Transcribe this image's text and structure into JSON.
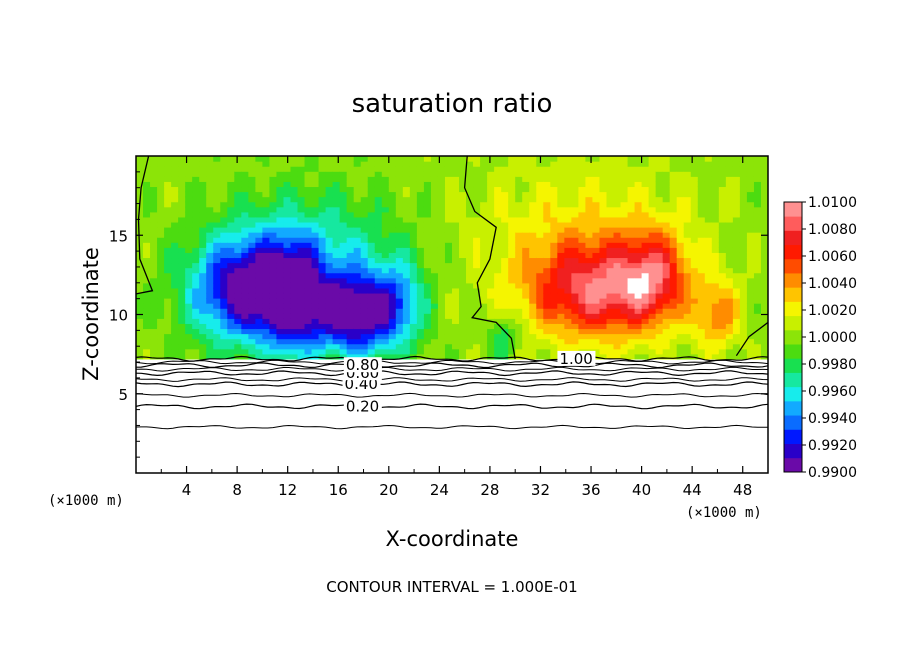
{
  "chart_data": {
    "type": "heatmap",
    "title": "saturation ratio",
    "xlabel": "X-coordinate",
    "ylabel": "Z-coordinate",
    "x_unit": "(×1000 m)",
    "xlim": [
      0,
      50
    ],
    "ylim": [
      0,
      20
    ],
    "x_ticks": [
      4,
      8,
      12,
      16,
      20,
      24,
      28,
      32,
      36,
      40,
      44,
      48
    ],
    "y_ticks": [
      5,
      10,
      15
    ],
    "colorbar": {
      "min": 0.99,
      "max": 1.01,
      "ticks": [
        "0.9900",
        "0.9920",
        "0.9940",
        "0.9960",
        "0.9980",
        "1.0000",
        "1.0020",
        "1.0040",
        "1.0060",
        "1.0080",
        "1.0100"
      ],
      "colors": [
        "#6a0aa8",
        "#2a00c8",
        "#0018ff",
        "#0a6cff",
        "#12aaff",
        "#17ecec",
        "#16e8a0",
        "#18e050",
        "#4cdc10",
        "#8ce408",
        "#c8f000",
        "#f5f500",
        "#ffc400",
        "#ff8c00",
        "#ff4c00",
        "#ff1a00",
        "#f02020",
        "#ff5c5c",
        "#ff9090"
      ]
    },
    "saturated_layer_top": 7.2,
    "contours": [
      {
        "label": "0.20",
        "z": 4.2
      },
      {
        "label": "0.40",
        "z": 5.6
      },
      {
        "label": "0.60",
        "z": 6.3
      },
      {
        "label": "0.80",
        "z": 6.8
      },
      {
        "label": "1.00",
        "z": 7.2
      }
    ],
    "extra_contour_z": 2.9,
    "field_features": [
      {
        "x": 8.6,
        "z": 11.5,
        "sx": 4.2,
        "sz": 3.2,
        "amp": -0.009
      },
      {
        "x": 12.4,
        "z": 10.8,
        "sx": 2.2,
        "sz": 3.5,
        "amp": -0.006
      },
      {
        "x": 17.5,
        "z": 10.0,
        "sx": 3.6,
        "sz": 2.6,
        "amp": -0.0095
      },
      {
        "x": 14.0,
        "z": 13.5,
        "sx": 7.0,
        "sz": 4.0,
        "amp": -0.004
      },
      {
        "x": 21.0,
        "z": 11.0,
        "sx": 1.8,
        "sz": 2.5,
        "amp": -0.003
      },
      {
        "x": 36.5,
        "z": 11.5,
        "sx": 5.5,
        "sz": 3.0,
        "amp": 0.0078
      },
      {
        "x": 41.0,
        "z": 12.5,
        "sx": 2.6,
        "sz": 2.8,
        "amp": 0.005
      },
      {
        "x": 46.0,
        "z": 10.0,
        "sx": 1.8,
        "sz": 2.2,
        "amp": 0.004
      },
      {
        "x": 35.0,
        "z": 15.0,
        "sx": 9.0,
        "sz": 4.5,
        "amp": 0.0022
      },
      {
        "x": 29.0,
        "z": 8.5,
        "sx": 1.2,
        "sz": 1.4,
        "amp": -0.003
      }
    ],
    "footer": "CONTOUR INTERVAL = 1.000E-01"
  }
}
